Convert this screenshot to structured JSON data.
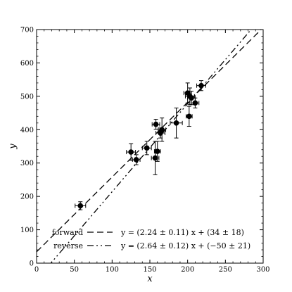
{
  "chart_data": {
    "type": "scatter",
    "title": "",
    "xlabel": "x",
    "ylabel": "y",
    "xlim": [
      0,
      300
    ],
    "ylim": [
      0,
      700
    ],
    "xticks": [
      "0",
      "50",
      "100",
      "150",
      "200",
      "250",
      "300"
    ],
    "yticks": [
      "0",
      "100",
      "200",
      "300",
      "400",
      "500",
      "600",
      "700"
    ],
    "grid": false,
    "legend_position": "bottom-right",
    "points": [
      {
        "x": 58,
        "y": 172,
        "xerr": 7,
        "yerr": 12
      },
      {
        "x": 125,
        "y": 333,
        "xerr": 6,
        "yerr": 25
      },
      {
        "x": 132,
        "y": 310,
        "xerr": 5,
        "yerr": 15
      },
      {
        "x": 146,
        "y": 345,
        "xerr": 6,
        "yerr": 20
      },
      {
        "x": 157,
        "y": 315,
        "xerr": 5,
        "yerr": 50
      },
      {
        "x": 158,
        "y": 416,
        "xerr": 5,
        "yerr": 15
      },
      {
        "x": 160,
        "y": 335,
        "xerr": 4,
        "yerr": 30
      },
      {
        "x": 164,
        "y": 390,
        "xerr": 6,
        "yerr": 15
      },
      {
        "x": 166,
        "y": 400,
        "xerr": 5,
        "yerr": 35
      },
      {
        "x": 185,
        "y": 420,
        "xerr": 8,
        "yerr": 45
      },
      {
        "x": 200,
        "y": 510,
        "xerr": 5,
        "yerr": 30
      },
      {
        "x": 202,
        "y": 440,
        "xerr": 4,
        "yerr": 30
      },
      {
        "x": 203,
        "y": 500,
        "xerr": 6,
        "yerr": 25
      },
      {
        "x": 205,
        "y": 495,
        "xerr": 5,
        "yerr": 20
      },
      {
        "x": 210,
        "y": 480,
        "xerr": 5,
        "yerr": 15
      },
      {
        "x": 218,
        "y": 532,
        "xerr": 6,
        "yerr": 15
      }
    ],
    "series": [
      {
        "name": "forward",
        "slope": 2.24,
        "intercept": 34,
        "style": "dashed",
        "equation": "y = (2.24 ± 0.11) x + (34 ± 18)"
      },
      {
        "name": "reverse",
        "slope": 2.64,
        "intercept": -50,
        "style": "dash-dot-dot",
        "equation": "y = (2.64 ± 0.12) x + (−50 ± 21)"
      }
    ]
  }
}
